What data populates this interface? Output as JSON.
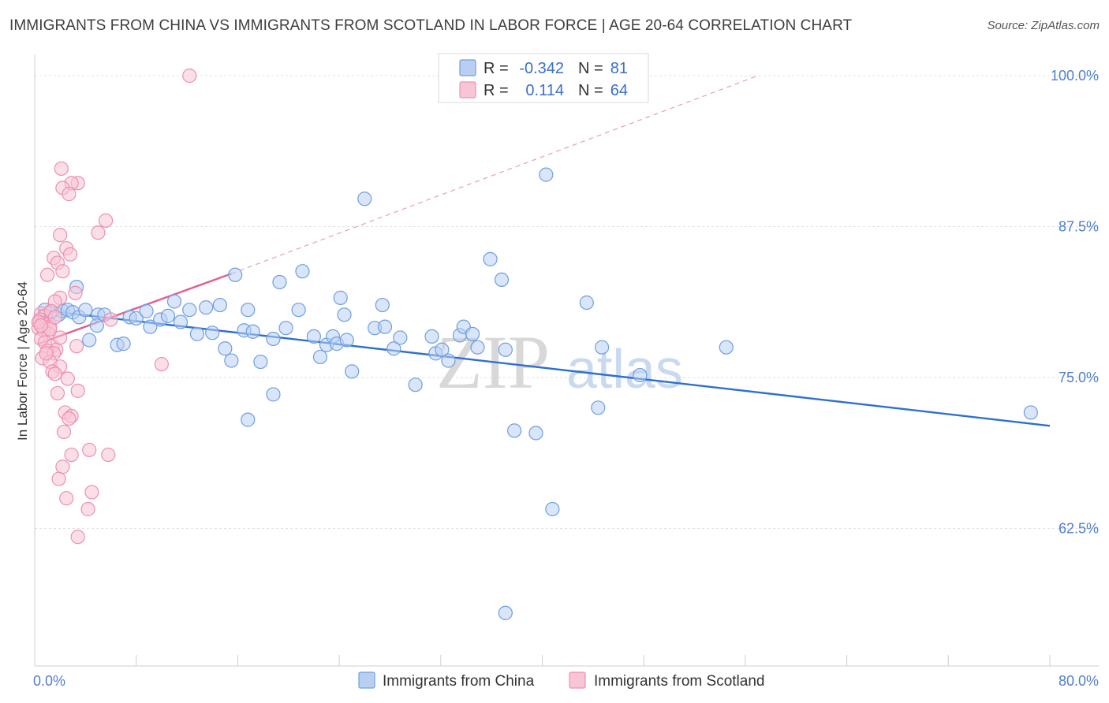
{
  "title": "IMMIGRANTS FROM CHINA VS IMMIGRANTS FROM SCOTLAND IN LABOR FORCE | AGE 20-64 CORRELATION CHART",
  "source": "Source: ZipAtlas.com",
  "watermark": {
    "zip": "ZIP",
    "atlas": "atlas"
  },
  "chart_data": {
    "type": "scatter",
    "ylabel": "In Labor Force | Age 20-64",
    "xlim": [
      0,
      80
    ],
    "ylim": [
      52.5,
      102
    ],
    "x_tick_labels": [
      {
        "value": 0,
        "label": "0.0%"
      },
      {
        "value": 80,
        "label": "80.0%"
      }
    ],
    "y_ticks": [
      {
        "value": 100,
        "label": "100.0%"
      },
      {
        "value": 87.5,
        "label": "87.5%"
      },
      {
        "value": 75,
        "label": "75.0%"
      },
      {
        "value": 62.5,
        "label": "62.5%"
      }
    ],
    "legend": {
      "rows": [
        {
          "r_label": "R =",
          "r_value": "-0.342",
          "n_label": "N =",
          "n_value": "81"
        },
        {
          "r_label": "R =",
          "r_value": "0.114",
          "n_label": "N =",
          "n_value": "64"
        }
      ]
    },
    "series": [
      {
        "name": "Immigrants from China",
        "color": "#6f9fe0",
        "fill": "#b9cff2",
        "trend": {
          "x": [
            0.3,
            80
          ],
          "y": [
            80.6,
            71.0
          ],
          "color": "#2f6fd0"
        },
        "points": [
          [
            0.8,
            80.6
          ],
          [
            1.3,
            80.4
          ],
          [
            1.9,
            80.2
          ],
          [
            2.2,
            80.5
          ],
          [
            2.6,
            80.6
          ],
          [
            3.0,
            80.4
          ],
          [
            3.5,
            80.0
          ],
          [
            4.0,
            80.6
          ],
          [
            4.3,
            78.1
          ],
          [
            5.0,
            80.2
          ],
          [
            5.5,
            80.2
          ],
          [
            4.9,
            79.3
          ],
          [
            6.5,
            77.7
          ],
          [
            7.0,
            77.8
          ],
          [
            7.5,
            80.0
          ],
          [
            8.0,
            79.9
          ],
          [
            8.8,
            80.5
          ],
          [
            9.1,
            79.2
          ],
          [
            9.9,
            79.8
          ],
          [
            10.5,
            80.1
          ],
          [
            11.0,
            81.3
          ],
          [
            11.5,
            79.6
          ],
          [
            12.2,
            80.6
          ],
          [
            12.8,
            78.6
          ],
          [
            13.5,
            80.8
          ],
          [
            14.0,
            78.7
          ],
          [
            14.6,
            81.0
          ],
          [
            15.0,
            77.4
          ],
          [
            15.5,
            76.4
          ],
          [
            15.8,
            83.5
          ],
          [
            16.5,
            78.9
          ],
          [
            16.8,
            80.6
          ],
          [
            17.2,
            78.8
          ],
          [
            17.8,
            76.3
          ],
          [
            18.8,
            78.2
          ],
          [
            19.3,
            82.9
          ],
          [
            19.8,
            79.1
          ],
          [
            20.8,
            80.6
          ],
          [
            21.1,
            83.8
          ],
          [
            22.0,
            78.4
          ],
          [
            22.5,
            76.7
          ],
          [
            23.0,
            77.7
          ],
          [
            23.5,
            78.4
          ],
          [
            23.8,
            77.8
          ],
          [
            24.1,
            81.6
          ],
          [
            24.4,
            80.2
          ],
          [
            25.0,
            75.5
          ],
          [
            24.6,
            78.1
          ],
          [
            26.0,
            89.8
          ],
          [
            26.8,
            79.1
          ],
          [
            27.4,
            81.0
          ],
          [
            27.6,
            79.2
          ],
          [
            28.3,
            77.4
          ],
          [
            28.8,
            78.3
          ],
          [
            30.0,
            74.4
          ],
          [
            31.3,
            78.4
          ],
          [
            31.6,
            77.0
          ],
          [
            32.1,
            77.3
          ],
          [
            32.6,
            76.4
          ],
          [
            33.5,
            78.5
          ],
          [
            33.8,
            79.2
          ],
          [
            34.5,
            78.6
          ],
          [
            34.9,
            77.5
          ],
          [
            35.9,
            84.8
          ],
          [
            36.8,
            83.1
          ],
          [
            37.1,
            77.3
          ],
          [
            37.8,
            70.6
          ],
          [
            39.5,
            70.4
          ],
          [
            40.3,
            91.8
          ],
          [
            40.8,
            64.1
          ],
          [
            43.5,
            81.2
          ],
          [
            44.4,
            72.5
          ],
          [
            44.7,
            77.5
          ],
          [
            47.7,
            75.2
          ],
          [
            54.5,
            77.5
          ],
          [
            78.5,
            72.1
          ],
          [
            16.8,
            71.5
          ],
          [
            18.8,
            73.6
          ],
          [
            3.3,
            82.5
          ],
          [
            0.4,
            79.5
          ],
          [
            37.1,
            55.5
          ]
        ]
      },
      {
        "name": "Immigrants from Scotland",
        "color": "#ee8fb0",
        "fill": "#f8c5d6",
        "trend": {
          "x": [
            0.3,
            15.5
          ],
          "y": [
            77.8,
            83.6
          ],
          "color": "#e0608f"
        },
        "trend_dashed": {
          "x": [
            15.5,
            57
          ],
          "y": [
            83.6,
            100
          ],
          "color": "#ec9cb8"
        },
        "points": [
          [
            12.2,
            100.0
          ],
          [
            2.1,
            92.3
          ],
          [
            3.4,
            91.1
          ],
          [
            2.9,
            91.1
          ],
          [
            2.2,
            90.7
          ],
          [
            2.7,
            90.2
          ],
          [
            5.6,
            88.0
          ],
          [
            5.0,
            87.0
          ],
          [
            2.0,
            86.8
          ],
          [
            2.5,
            85.7
          ],
          [
            2.8,
            85.2
          ],
          [
            1.5,
            84.9
          ],
          [
            1.8,
            84.5
          ],
          [
            2.2,
            83.8
          ],
          [
            1.0,
            83.5
          ],
          [
            3.2,
            82.0
          ],
          [
            2.0,
            81.6
          ],
          [
            1.6,
            81.3
          ],
          [
            0.5,
            80.3
          ],
          [
            0.8,
            80.1
          ],
          [
            1.3,
            80.5
          ],
          [
            0.4,
            79.8
          ],
          [
            0.6,
            79.5
          ],
          [
            0.9,
            79.4
          ],
          [
            1.2,
            79.2
          ],
          [
            0.3,
            79.1
          ],
          [
            0.7,
            78.9
          ],
          [
            1.1,
            78.6
          ],
          [
            0.5,
            78.2
          ],
          [
            0.8,
            77.9
          ],
          [
            1.4,
            77.6
          ],
          [
            1.7,
            77.3
          ],
          [
            1.0,
            77.2
          ],
          [
            1.5,
            77.0
          ],
          [
            0.6,
            76.6
          ],
          [
            1.2,
            76.3
          ],
          [
            2.0,
            75.9
          ],
          [
            1.4,
            75.5
          ],
          [
            1.6,
            75.3
          ],
          [
            1.8,
            73.7
          ],
          [
            3.4,
            73.9
          ],
          [
            2.4,
            72.1
          ],
          [
            2.9,
            71.8
          ],
          [
            2.7,
            71.6
          ],
          [
            2.3,
            70.5
          ],
          [
            2.9,
            68.6
          ],
          [
            4.3,
            69.0
          ],
          [
            5.8,
            68.6
          ],
          [
            2.2,
            67.6
          ],
          [
            1.9,
            66.6
          ],
          [
            4.5,
            65.5
          ],
          [
            2.5,
            65.0
          ],
          [
            4.2,
            64.1
          ],
          [
            3.4,
            61.8
          ],
          [
            10.0,
            76.1
          ],
          [
            6.0,
            79.8
          ],
          [
            0.3,
            79.6
          ],
          [
            1.2,
            79.0
          ],
          [
            3.3,
            77.6
          ],
          [
            0.9,
            77.0
          ],
          [
            2.6,
            74.9
          ],
          [
            2.0,
            78.3
          ],
          [
            0.5,
            79.3
          ],
          [
            1.6,
            80.0
          ]
        ]
      }
    ]
  }
}
